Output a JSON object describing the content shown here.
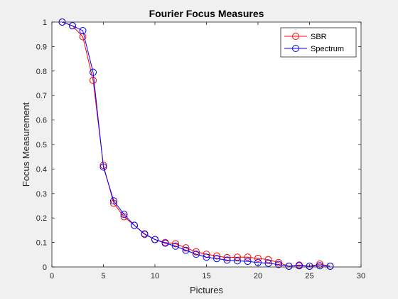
{
  "chart_data": {
    "type": "line",
    "title": "Fourier Focus Measures",
    "xlabel": "Pictures",
    "ylabel": "Focus Measurement",
    "xlim": [
      0,
      30
    ],
    "ylim": [
      0,
      1
    ],
    "xticks": [
      0,
      5,
      10,
      15,
      20,
      25,
      30
    ],
    "yticks": [
      0,
      0.1,
      0.2,
      0.3,
      0.4,
      0.5,
      0.6,
      0.7,
      0.8,
      0.9,
      1
    ],
    "grid": false,
    "legend_position": "top-right",
    "x": [
      1,
      2,
      3,
      4,
      5,
      6,
      7,
      8,
      9,
      10,
      11,
      12,
      13,
      14,
      15,
      16,
      17,
      18,
      19,
      20,
      21,
      22,
      23,
      24,
      25,
      26,
      27
    ],
    "series": [
      {
        "name": "SBR",
        "color": "#ff0000",
        "marker": "circle",
        "values": [
          1.0,
          0.985,
          0.94,
          0.762,
          0.415,
          0.26,
          0.205,
          0.17,
          0.133,
          0.112,
          0.1,
          0.095,
          0.078,
          0.062,
          0.052,
          0.045,
          0.038,
          0.04,
          0.04,
          0.035,
          0.03,
          0.018,
          0.003,
          0.008,
          0.003,
          0.012,
          0.003
        ]
      },
      {
        "name": "Spectrum",
        "color": "#0000ff",
        "marker": "circle",
        "values": [
          1.0,
          0.985,
          0.965,
          0.795,
          0.408,
          0.27,
          0.215,
          0.17,
          0.135,
          0.112,
          0.097,
          0.085,
          0.068,
          0.052,
          0.04,
          0.034,
          0.028,
          0.025,
          0.023,
          0.018,
          0.015,
          0.01,
          0.003,
          0.005,
          0.003,
          0.005,
          0.003
        ]
      }
    ]
  }
}
